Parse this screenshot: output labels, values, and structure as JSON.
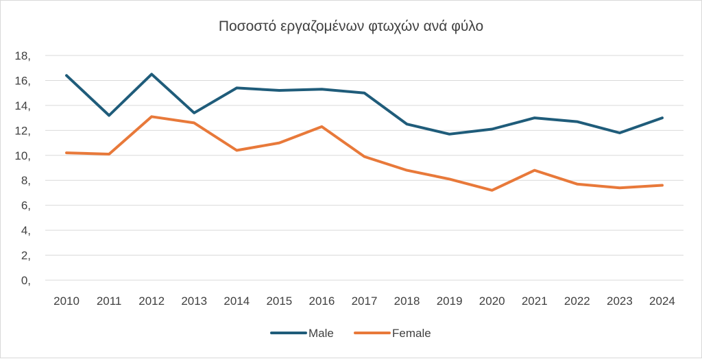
{
  "chart_data": {
    "type": "line",
    "title": "Ποσοστό εργαζομένων φτωχών ανά φύλο",
    "xlabel": "",
    "ylabel": "",
    "categories": [
      "2010",
      "2011",
      "2012",
      "2013",
      "2014",
      "2015",
      "2016",
      "2017",
      "2018",
      "2019",
      "2020",
      "2021",
      "2022",
      "2023",
      "2024"
    ],
    "ylim": [
      0,
      18
    ],
    "yticks": [
      0,
      2,
      4,
      6,
      8,
      10,
      12,
      14,
      16,
      18
    ],
    "ytick_labels": [
      "0,",
      "2,",
      "4,",
      "6,",
      "8,",
      "10,",
      "12,",
      "14,",
      "16,",
      "18,"
    ],
    "grid": true,
    "legend_position": "bottom",
    "series": [
      {
        "name": "Male",
        "color": "#1f5c7a",
        "values": [
          16.4,
          13.2,
          16.5,
          13.4,
          15.4,
          15.2,
          15.3,
          15.0,
          12.5,
          11.7,
          12.1,
          13.0,
          12.7,
          11.8,
          13.0
        ]
      },
      {
        "name": "Female",
        "color": "#e8793a",
        "values": [
          10.2,
          10.1,
          13.1,
          12.6,
          10.4,
          11.0,
          12.3,
          9.9,
          8.8,
          8.1,
          7.2,
          8.8,
          7.7,
          7.4,
          7.6
        ]
      }
    ]
  },
  "colors": {
    "grid": "#d9d9d9",
    "text": "#404040"
  }
}
